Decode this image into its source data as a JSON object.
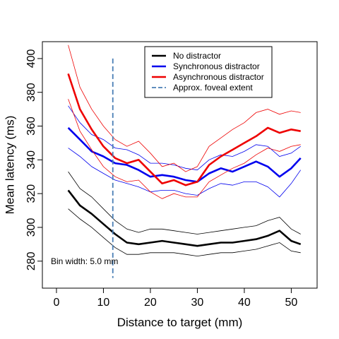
{
  "chart_data": {
    "type": "line",
    "title": "",
    "xlabel": "Distance to target (mm)",
    "ylabel": "Mean latency (ms)",
    "xlim": [
      -3,
      55.5
    ],
    "ylim": [
      264,
      410
    ],
    "xticks": [
      0,
      10,
      20,
      30,
      40,
      50
    ],
    "yticks": [
      280,
      300,
      320,
      340,
      360,
      380,
      400
    ],
    "grid": false,
    "legend_position": "top-right",
    "annotation": "Bin width: 5.0 mm",
    "vline": {
      "x": 12,
      "label": "Approx. foveal extent",
      "color": "#4a7fb5",
      "y_range": [
        270,
        400
      ]
    },
    "x": [
      2.5,
      5,
      7.5,
      10,
      12.5,
      15,
      17.5,
      20,
      22.5,
      25,
      27.5,
      30,
      32.5,
      35,
      37.5,
      40,
      42.5,
      45,
      47.5,
      50,
      52
    ],
    "series": [
      {
        "name": "No distractor",
        "color": "#000000",
        "values": [
          322,
          313,
          308,
          302,
          296,
          291,
          290,
          291,
          292,
          291,
          290,
          289,
          290,
          291,
          291,
          292,
          293,
          295,
          298,
          292,
          290
        ],
        "lower": [
          311,
          305,
          300,
          294,
          288,
          284,
          284,
          285,
          285,
          285,
          284,
          283,
          284,
          285,
          285,
          286,
          287,
          289,
          291,
          286,
          285
        ],
        "upper": [
          333,
          323,
          318,
          311,
          304,
          299,
          297,
          299,
          299,
          298,
          297,
          296,
          297,
          298,
          299,
          300,
          301,
          304,
          306,
          299,
          296
        ]
      },
      {
        "name": "Synchronous distractor",
        "color": "#0000ee",
        "values": [
          359,
          352,
          345,
          342,
          338,
          337,
          334,
          330,
          331,
          330,
          328,
          327,
          332,
          335,
          333,
          336,
          339,
          336,
          330,
          335,
          341
        ],
        "lower": [
          347,
          342,
          336,
          332,
          328,
          326,
          324,
          321,
          322,
          322,
          320,
          319,
          323,
          326,
          325,
          327,
          327,
          324,
          318,
          326,
          334
        ],
        "upper": [
          372,
          362,
          355,
          352,
          347,
          346,
          343,
          338,
          338,
          337,
          335,
          334,
          340,
          343,
          342,
          345,
          349,
          348,
          342,
          344,
          348
        ]
      },
      {
        "name": "Asynchronous distractor",
        "color": "#ee0000",
        "values": [
          391,
          370,
          358,
          348,
          341,
          338,
          340,
          333,
          326,
          328,
          325,
          327,
          337,
          342,
          346,
          350,
          354,
          359,
          356,
          358,
          357
        ],
        "lower": [
          376,
          357,
          346,
          336,
          330,
          327,
          328,
          321,
          317,
          320,
          318,
          318,
          327,
          331,
          335,
          338,
          343,
          347,
          345,
          348,
          349
        ],
        "upper": [
          408,
          383,
          370,
          360,
          352,
          348,
          351,
          344,
          336,
          338,
          333,
          336,
          348,
          353,
          358,
          362,
          368,
          370,
          367,
          369,
          368
        ]
      }
    ]
  },
  "legend": {
    "items": [
      {
        "label": "No distractor",
        "color": "#000000",
        "dash": false
      },
      {
        "label": "Synchronous distractor",
        "color": "#0000ee",
        "dash": false
      },
      {
        "label": "Asynchronous distractor",
        "color": "#ee0000",
        "dash": false
      },
      {
        "label": "Approx. foveal extent",
        "color": "#4a7fb5",
        "dash": true
      }
    ]
  }
}
